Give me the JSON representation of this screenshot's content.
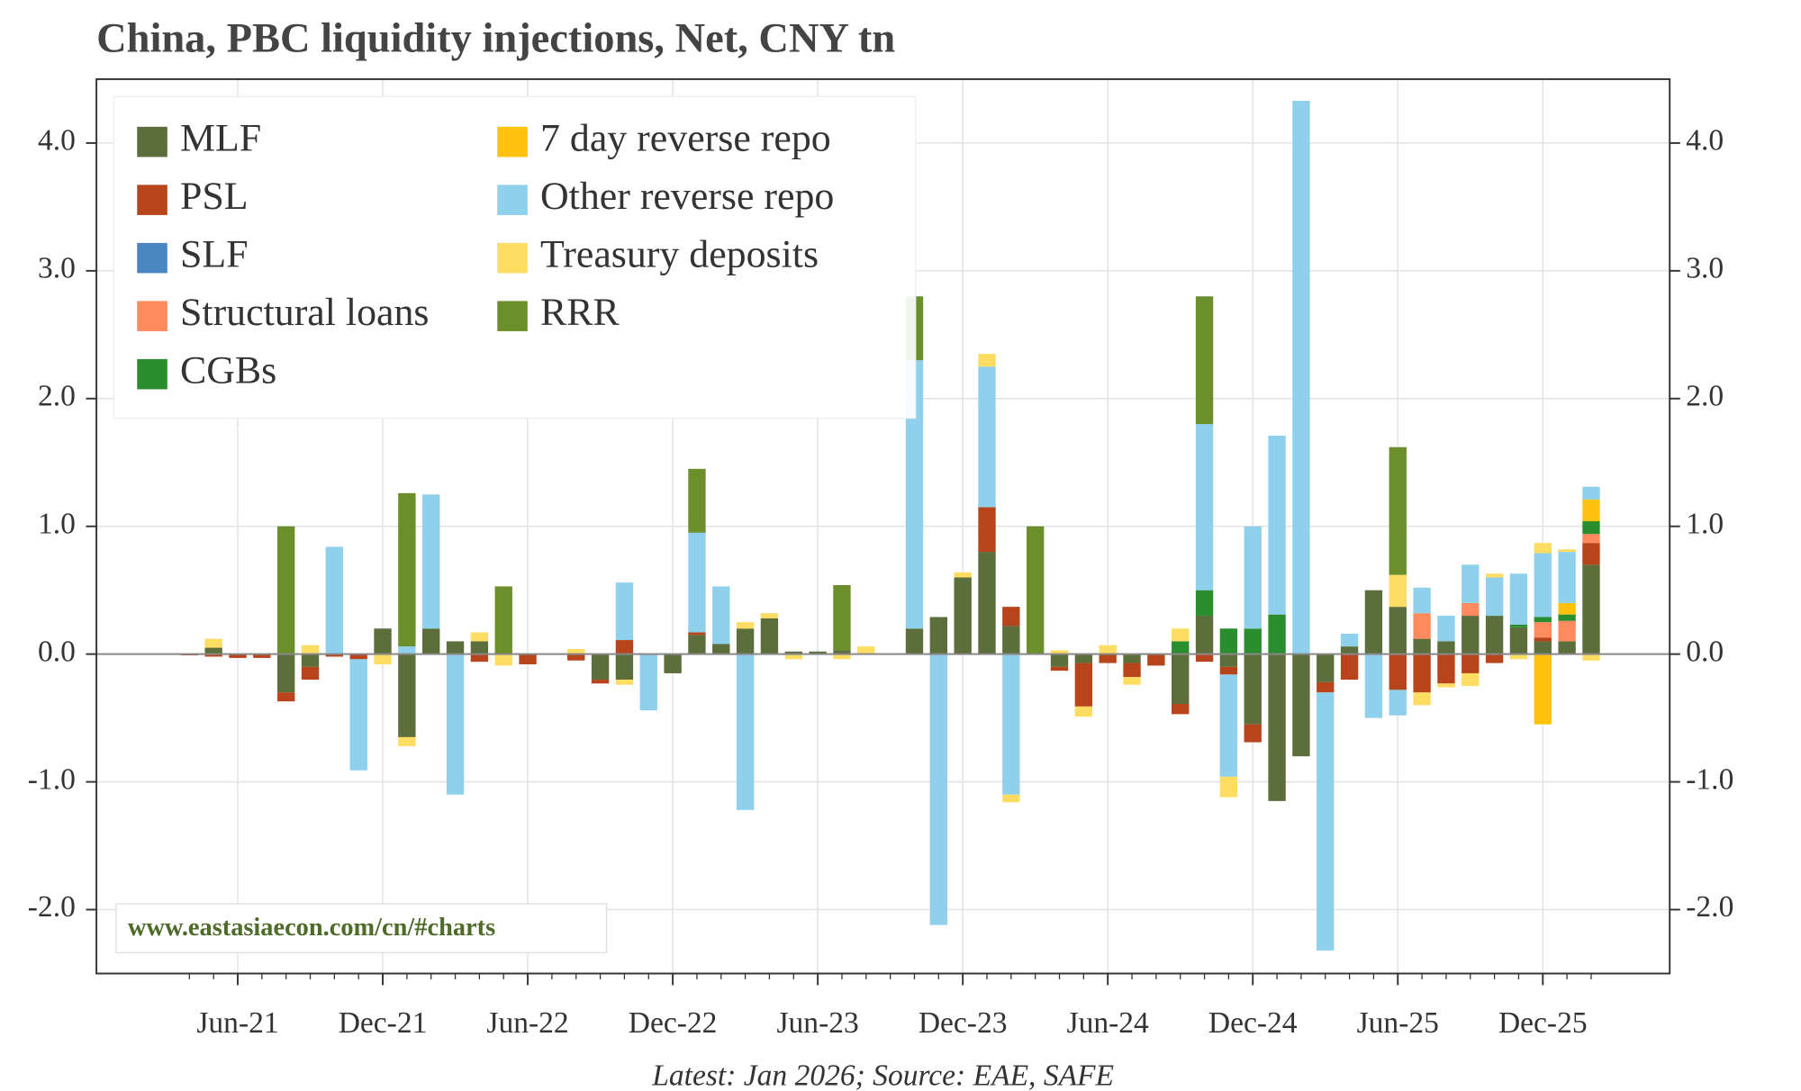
{
  "chart_data": {
    "type": "stacked_bar",
    "title": "China, PBC liquidity injections, Net, CNY tn",
    "watermark": "www.eastasiaecon.com/cn/#charts",
    "source": "Latest: Jan 2026; Source: EAE, SAFE",
    "legend": "upper left",
    "grid": true,
    "categories": [
      null,
      null,
      "Jun-21",
      null,
      null,
      null,
      null,
      null,
      "Dec-21",
      null,
      null,
      null,
      null,
      null,
      "Jun-22",
      null,
      null,
      null,
      null,
      null,
      "Dec-22",
      null,
      null,
      null,
      null,
      null,
      "Jun-23",
      null,
      null,
      null,
      null,
      null,
      "Dec-23",
      null,
      null,
      null,
      null,
      null,
      "Jun-24",
      null,
      null,
      null,
      null,
      null,
      "Dec-24",
      null,
      null,
      null,
      null,
      null,
      "Jun-25",
      null,
      null,
      null,
      null,
      null,
      "Dec-25",
      null,
      null
    ],
    "ylim": [
      -2.5,
      4.5
    ],
    "yticks": [
      {
        "value": -2,
        "label": "-2.0"
      },
      {
        "value": -1,
        "label": "-1.0"
      },
      {
        "value": 0,
        "label": "0.0"
      },
      {
        "value": 1,
        "label": "1.0"
      },
      {
        "value": 2,
        "label": "2.0"
      },
      {
        "value": 3,
        "label": "3.0"
      },
      {
        "value": 4,
        "label": "4.0"
      }
    ],
    "series": [
      {
        "name": "MLF",
        "color": "#5b6e3b",
        "values": [
          0,
          0.05,
          0,
          0,
          -0.3,
          -0.1,
          0,
          0,
          0.2,
          -0.65,
          0.2,
          0.1,
          0.1,
          0,
          0,
          0,
          0,
          -0.2,
          -0.2,
          0,
          -0.15,
          0.15,
          0.08,
          0.2,
          0.28,
          0.02,
          0.02,
          0.03,
          0,
          0,
          0.2,
          0.29,
          0.6,
          0.8,
          0.22,
          0,
          -0.1,
          -0.07,
          0,
          -0.07,
          0,
          -0.39,
          0.3,
          -0.1,
          -0.55,
          -1.15,
          -0.8,
          -0.22,
          0.06,
          0.5,
          0.37,
          0.12,
          0.1,
          0.3,
          0.3,
          0.21,
          0.1,
          0.1,
          0.7
        ]
      },
      {
        "name": "PSL",
        "color": "#b7441b",
        "values": [
          -0.01,
          -0.02,
          -0.03,
          -0.03,
          -0.07,
          -0.1,
          -0.02,
          -0.04,
          0,
          0,
          0,
          0,
          -0.06,
          0,
          -0.08,
          0,
          -0.05,
          -0.03,
          0.11,
          0,
          0,
          0.02,
          0,
          0,
          0,
          0,
          0,
          0,
          0,
          0,
          0,
          0,
          0,
          0.35,
          0.15,
          0,
          -0.03,
          -0.34,
          -0.07,
          -0.11,
          -0.09,
          -0.08,
          -0.06,
          -0.06,
          -0.14,
          0,
          0,
          -0.08,
          -0.2,
          0,
          -0.28,
          -0.3,
          -0.23,
          -0.15,
          -0.07,
          0,
          0.03,
          0,
          0.17
        ]
      },
      {
        "name": "SLF",
        "color": "#4a86bf",
        "values": [
          0,
          0,
          0,
          0,
          0,
          0,
          0,
          0,
          0,
          0,
          0,
          0,
          0,
          0,
          0,
          0,
          0,
          0,
          0,
          0,
          0,
          0,
          0,
          0,
          0,
          0,
          0,
          0,
          0,
          0,
          0,
          0,
          0,
          0,
          0,
          0,
          0,
          0,
          0,
          0,
          0,
          0,
          0,
          0,
          0,
          0,
          0,
          0,
          0,
          0,
          0,
          0,
          0,
          0,
          0,
          0,
          0,
          0,
          0
        ]
      },
      {
        "name": "Structural loans",
        "color": "#ff8a5e",
        "values": [
          0,
          0,
          0,
          0,
          0,
          0,
          0,
          0,
          0,
          0,
          0,
          0,
          0,
          0,
          0,
          0,
          0,
          0,
          0,
          0,
          0,
          0,
          0,
          0,
          0,
          0,
          0,
          0,
          0,
          0,
          0,
          0,
          0,
          0,
          0,
          0,
          0,
          0,
          0,
          0,
          0,
          0,
          0,
          0,
          0,
          0,
          0,
          0,
          0,
          0,
          0,
          0.2,
          0,
          0.1,
          0,
          0,
          0.12,
          0.16,
          0.07
        ]
      },
      {
        "name": "CGBs",
        "color": "#2a8d2e",
        "values": [
          0,
          0,
          0,
          0,
          0,
          0,
          0,
          0,
          0,
          0,
          0,
          0,
          0,
          0,
          0,
          0,
          0,
          0,
          0,
          0,
          0,
          0,
          0,
          0,
          0,
          0,
          0,
          0,
          0,
          0,
          0,
          0,
          0,
          0,
          0,
          0,
          0,
          0,
          0,
          0,
          0,
          0.1,
          0.2,
          0.2,
          0.2,
          0.31,
          0,
          0,
          0,
          0,
          0,
          0,
          0,
          0,
          0,
          0.02,
          0.04,
          0.05,
          0.1
        ]
      },
      {
        "name": "7 day reverse repo",
        "color": "#ffc20e",
        "values": [
          0,
          0,
          0,
          0,
          0,
          0,
          0,
          0,
          0,
          0,
          0,
          0,
          0,
          0,
          0,
          0,
          0,
          0,
          0,
          0,
          0,
          0,
          0,
          0,
          0,
          0,
          0,
          0,
          0,
          0,
          0,
          0,
          0,
          0,
          0,
          0,
          0,
          0,
          0,
          0,
          0,
          0,
          0,
          0,
          0,
          0,
          0,
          0,
          0,
          0,
          0,
          0,
          0,
          0,
          0,
          0,
          -0.55,
          0.09,
          0.17
        ]
      },
      {
        "name": "Other reverse repo",
        "color": "#8fd0ec",
        "values": [
          0,
          0,
          0,
          0,
          0,
          0,
          0.84,
          -0.87,
          0,
          0.06,
          1.05,
          -1.1,
          0,
          0,
          0,
          0,
          0,
          0,
          0.45,
          -0.44,
          0,
          0.78,
          0.45,
          -1.22,
          0,
          0,
          0,
          0,
          0,
          0,
          2.1,
          -2.12,
          0,
          1.1,
          -1.1,
          0,
          0,
          0,
          0,
          0,
          0,
          0,
          1.3,
          -0.8,
          0.8,
          1.4,
          4.33,
          -2.02,
          0.1,
          -0.5,
          -0.2,
          0.2,
          0.2,
          0.3,
          0.3,
          0.4,
          0.5,
          0.4,
          0.1
        ]
      },
      {
        "name": "Treasury deposits",
        "color": "#ffdc62",
        "values": [
          0,
          0.07,
          0,
          0,
          0,
          0.07,
          0,
          0,
          -0.08,
          -0.07,
          0,
          0,
          0.07,
          -0.09,
          0,
          0,
          0.04,
          0,
          -0.04,
          0,
          0,
          0,
          0,
          0.05,
          0.04,
          -0.04,
          0,
          -0.04,
          0.06,
          0,
          0,
          0,
          0.04,
          0.1,
          -0.06,
          0,
          0.03,
          -0.08,
          0.07,
          -0.06,
          0,
          0.1,
          0,
          -0.16,
          0,
          0,
          0,
          0,
          0,
          0,
          0.25,
          -0.1,
          -0.03,
          -0.1,
          0.03,
          -0.04,
          0.08,
          0.02,
          -0.05
        ]
      },
      {
        "name": "RRR",
        "color": "#6b8f2a",
        "values": [
          0,
          0,
          0,
          0,
          1.0,
          0,
          0,
          0,
          0,
          1.2,
          0,
          0,
          0,
          0.53,
          0,
          0,
          0,
          0,
          0,
          0,
          0,
          0.5,
          0,
          0,
          0,
          0,
          0,
          0.51,
          0,
          0,
          0.5,
          0,
          0,
          0,
          0,
          1.0,
          0,
          0,
          0,
          0,
          0,
          0,
          1.0,
          0,
          0,
          0,
          0,
          0,
          0,
          0,
          1.0,
          0,
          0,
          0,
          0,
          0,
          0,
          0,
          0
        ]
      }
    ]
  }
}
